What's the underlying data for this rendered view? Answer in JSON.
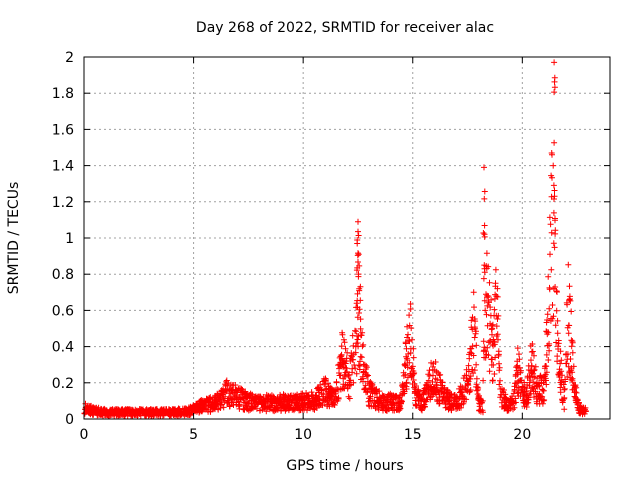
{
  "chart_data": {
    "type": "scatter",
    "title": "Day 268 of 2022, SRMTID for receiver alac",
    "xlabel": "GPS time / hours",
    "ylabel": "SRMTID / TECUs",
    "xlim": [
      0,
      24
    ],
    "ylim": [
      0,
      2
    ],
    "x_ticks": [
      0,
      5,
      10,
      15,
      20
    ],
    "x_tick_labels": [
      "0",
      "5",
      "10",
      "15",
      "20"
    ],
    "y_ticks": [
      0,
      0.2,
      0.4,
      0.6,
      0.8,
      1,
      1.2,
      1.4,
      1.6,
      1.8,
      2
    ],
    "y_tick_labels": [
      "0",
      "0.2",
      "0.4",
      "0.6",
      "0.8",
      "1",
      "1.2",
      "1.4",
      "1.6",
      "1.8",
      "2"
    ],
    "grid": true,
    "marker": "+",
    "marker_color": "#ff0000",
    "envelope_hours": [
      0.0,
      0.5,
      1.0,
      2.0,
      3.0,
      4.0,
      4.8,
      5.2,
      6.0,
      6.5,
      6.8,
      7.5,
      8.5,
      9.5,
      10.5,
      11.0,
      11.4,
      11.8,
      12.1,
      12.4,
      12.5,
      12.7,
      13.0,
      13.4,
      13.7,
      14.0,
      14.3,
      14.5,
      14.8,
      14.9,
      15.1,
      15.4,
      15.8,
      16.0,
      16.5,
      17.0,
      17.3,
      17.6,
      17.8,
      18.0,
      18.2,
      18.3,
      18.5,
      18.7,
      18.8,
      19.0,
      19.3,
      19.6,
      19.8,
      20.0,
      20.2,
      20.4,
      20.7,
      21.0,
      21.2,
      21.4,
      21.5,
      21.7,
      21.9,
      22.1,
      22.4,
      22.6,
      22.9
    ],
    "envelope_values": [
      0.08,
      0.06,
      0.05,
      0.05,
      0.05,
      0.05,
      0.06,
      0.09,
      0.12,
      0.2,
      0.18,
      0.13,
      0.12,
      0.13,
      0.14,
      0.22,
      0.14,
      0.45,
      0.3,
      0.55,
      0.95,
      0.4,
      0.2,
      0.15,
      0.12,
      0.13,
      0.12,
      0.14,
      0.55,
      0.6,
      0.2,
      0.12,
      0.28,
      0.3,
      0.15,
      0.12,
      0.2,
      0.38,
      0.7,
      0.12,
      0.1,
      0.95,
      0.7,
      0.45,
      0.95,
      0.2,
      0.1,
      0.12,
      0.38,
      0.2,
      0.16,
      0.45,
      0.2,
      0.25,
      0.8,
      1.6,
      1.2,
      0.4,
      0.15,
      0.8,
      0.2,
      0.08,
      0.06
    ],
    "peak_hours": [
      12.5,
      18.25,
      21.45
    ],
    "peak_values": [
      1.09,
      1.39,
      1.97
    ]
  }
}
